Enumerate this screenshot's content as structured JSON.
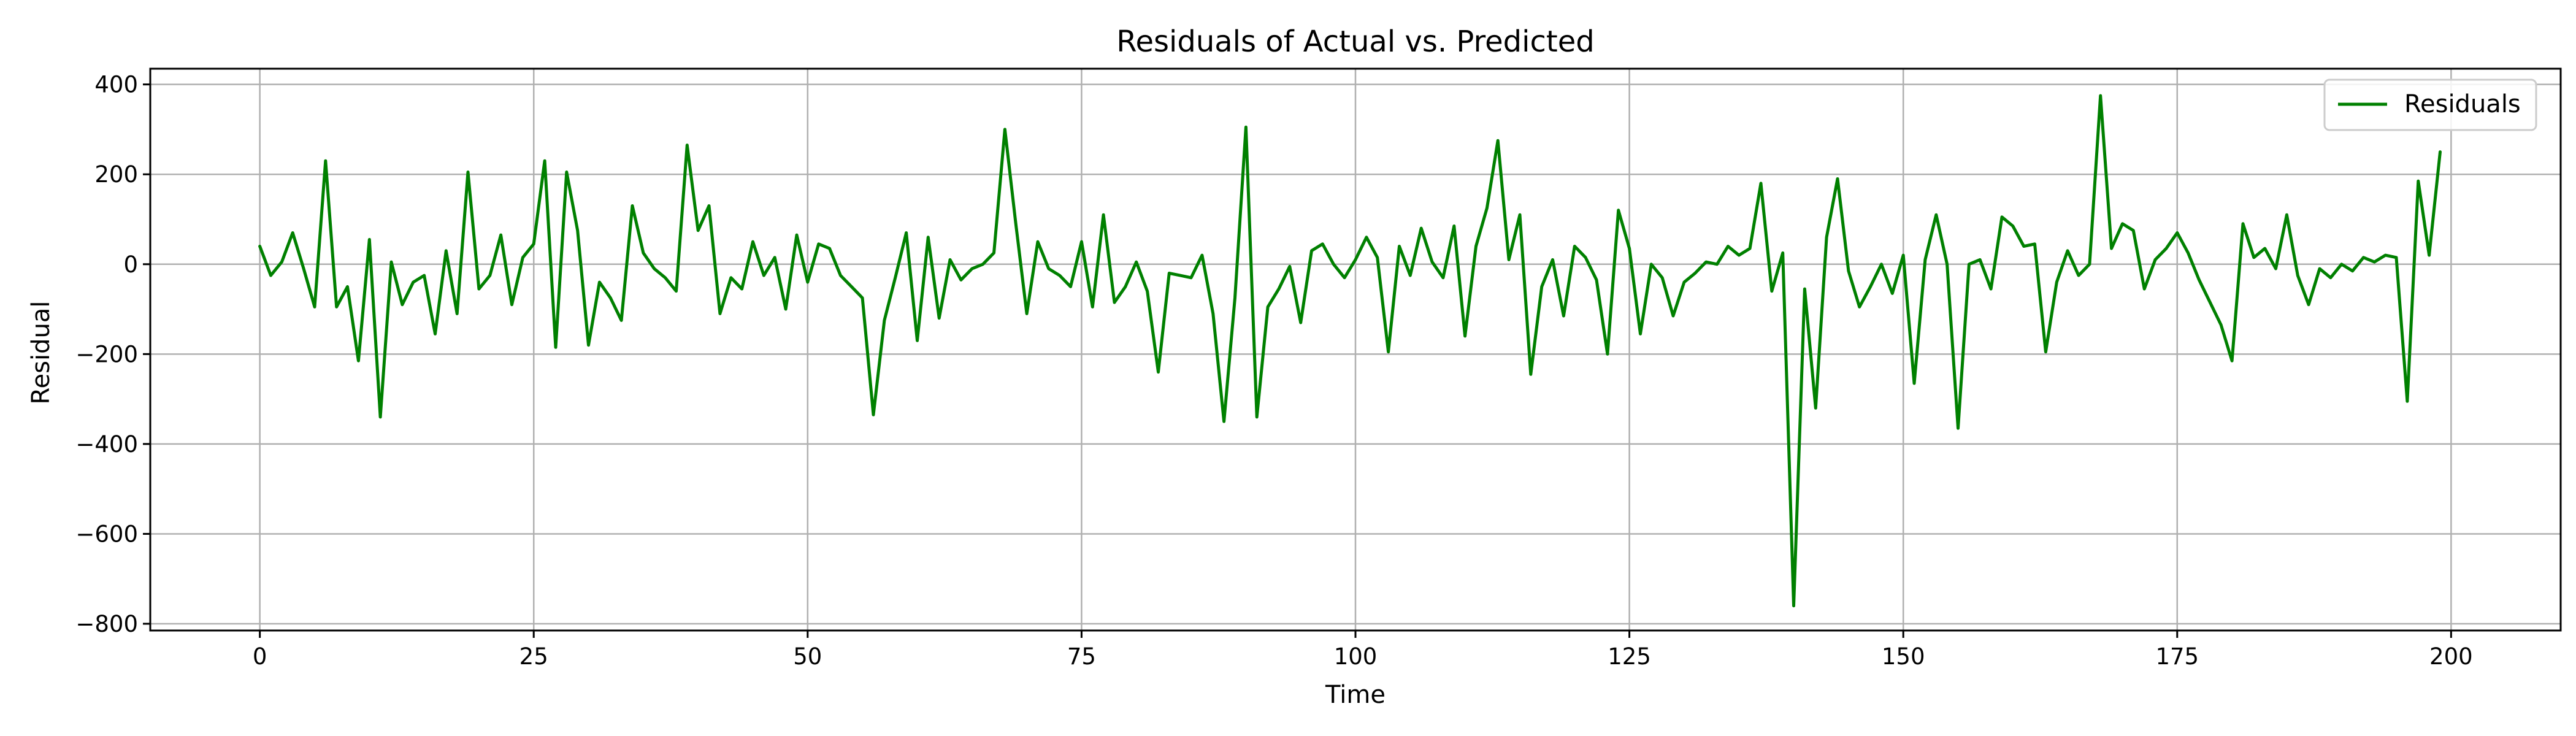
{
  "chart_data": {
    "type": "line",
    "title": "Residuals of Actual vs. Predicted",
    "xlabel": "Time",
    "ylabel": "Residual",
    "xlim": [
      -10,
      210
    ],
    "ylim": [
      -815,
      435
    ],
    "xticks": [
      0,
      25,
      50,
      75,
      100,
      125,
      150,
      175,
      200
    ],
    "yticks": [
      -800,
      -600,
      -400,
      -200,
      0,
      200,
      400
    ],
    "xtick_labels": [
      "0",
      "25",
      "50",
      "75",
      "100",
      "125",
      "150",
      "175",
      "200"
    ],
    "ytick_labels": [
      "−800",
      "−600",
      "−400",
      "−200",
      "0",
      "200",
      "400"
    ],
    "grid": true,
    "legend": {
      "placement": "top-right"
    },
    "series": [
      {
        "name": "Residuals",
        "color": "#008000",
        "x": [
          0,
          1,
          2,
          3,
          4,
          5,
          6,
          7,
          8,
          9,
          10,
          11,
          12,
          13,
          14,
          15,
          16,
          17,
          18,
          19,
          20,
          21,
          22,
          23,
          24,
          25,
          26,
          27,
          28,
          29,
          30,
          31,
          32,
          33,
          34,
          35,
          36,
          37,
          38,
          39,
          40,
          41,
          42,
          43,
          44,
          45,
          46,
          47,
          48,
          49,
          50,
          51,
          52,
          53,
          54,
          55,
          56,
          57,
          58,
          59,
          60,
          61,
          62,
          63,
          64,
          65,
          66,
          67,
          68,
          69,
          70,
          71,
          72,
          73,
          74,
          75,
          76,
          77,
          78,
          79,
          80,
          81,
          82,
          83,
          84,
          85,
          86,
          87,
          88,
          89,
          90,
          91,
          92,
          93,
          94,
          95,
          96,
          97,
          98,
          99,
          100,
          101,
          102,
          103,
          104,
          105,
          106,
          107,
          108,
          109,
          110,
          111,
          112,
          113,
          114,
          115,
          116,
          117,
          118,
          119,
          120,
          121,
          122,
          123,
          124,
          125,
          126,
          127,
          128,
          129,
          130,
          131,
          132,
          133,
          134,
          135,
          136,
          137,
          138,
          139,
          140,
          141,
          142,
          143,
          144,
          145,
          146,
          147,
          148,
          149,
          150,
          151,
          152,
          153,
          154,
          155,
          156,
          157,
          158,
          159,
          160,
          161,
          162,
          163,
          164,
          165,
          166,
          167,
          168,
          169,
          170,
          171,
          172,
          173,
          174,
          175,
          176,
          177,
          178,
          179,
          180,
          181,
          182,
          183,
          184,
          185,
          186,
          187,
          188,
          189,
          190,
          191,
          192,
          193,
          194,
          195,
          196,
          197,
          198,
          199
        ],
        "y": [
          40,
          -25,
          5,
          70,
          -10,
          -95,
          230,
          -95,
          -50,
          -215,
          55,
          -340,
          5,
          -90,
          -40,
          -25,
          -155,
          30,
          -110,
          205,
          -55,
          -25,
          65,
          -90,
          15,
          45,
          230,
          -185,
          205,
          75,
          -180,
          -40,
          -75,
          -125,
          130,
          25,
          -10,
          -30,
          -60,
          265,
          75,
          130,
          -110,
          -30,
          -55,
          50,
          -25,
          15,
          -100,
          65,
          -40,
          45,
          35,
          -25,
          -50,
          -75,
          -335,
          -125,
          -30,
          70,
          -170,
          60,
          -120,
          10,
          -35,
          -10,
          0,
          25,
          300,
          90,
          -110,
          50,
          -10,
          -25,
          -50,
          50,
          -95,
          110,
          -85,
          -50,
          5,
          -60,
          -240,
          -20,
          -25,
          -30,
          20,
          -110,
          -350,
          -75,
          305,
          -340,
          -95,
          -55,
          -5,
          -130,
          30,
          45,
          0,
          -30,
          10,
          60,
          15,
          -195,
          40,
          -25,
          80,
          5,
          -30,
          85,
          -160,
          40,
          125,
          275,
          10,
          110,
          -245,
          -50,
          10,
          -115,
          40,
          15,
          -35,
          -200,
          120,
          35,
          -155,
          0,
          -30,
          -115,
          -40,
          -20,
          5,
          0,
          40,
          20,
          35,
          180,
          -60,
          25,
          -760,
          -55,
          -320,
          60,
          190,
          -15,
          -95,
          -50,
          0,
          -65,
          20,
          -265,
          10,
          110,
          0,
          -365,
          0,
          10,
          -55,
          105,
          85,
          40,
          45,
          -195,
          -40,
          30,
          -25,
          0,
          375,
          35,
          90,
          75,
          -55,
          10,
          35,
          70,
          25,
          -35,
          -85,
          -135,
          -215,
          90,
          15,
          35,
          -10,
          110,
          -25,
          -90,
          -10,
          -30,
          0,
          -15,
          15,
          5,
          20,
          15,
          -305,
          185,
          20,
          250
        ]
      }
    ]
  }
}
